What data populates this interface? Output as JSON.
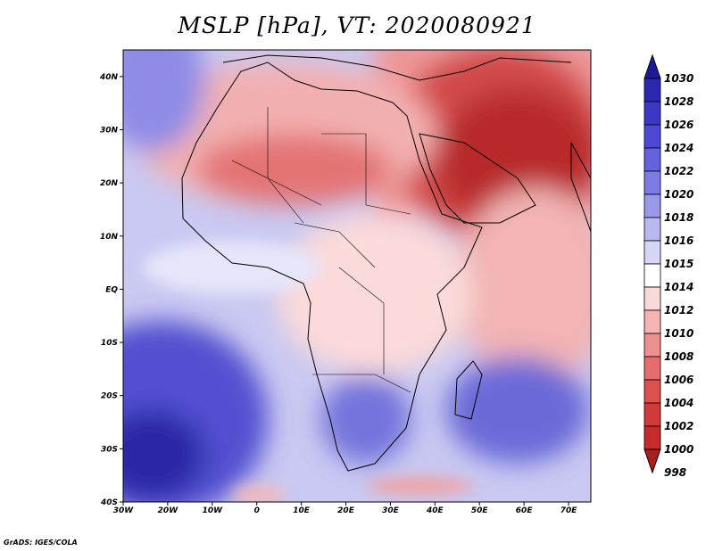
{
  "title": "MSLP [hPa], VT: 2020080921",
  "credit": "GrADS: IGES/COLA",
  "map": {
    "lon_range": [
      -30,
      75
    ],
    "lat_range": [
      -40,
      45
    ],
    "x_ticks": [
      "30W",
      "20W",
      "10W",
      "0",
      "10E",
      "20E",
      "30E",
      "40E",
      "50E",
      "60E",
      "70E"
    ],
    "y_ticks": [
      "40N",
      "30N",
      "20N",
      "10N",
      "EQ",
      "10S",
      "20S",
      "30S",
      "40S"
    ]
  },
  "colorbar": {
    "levels": [
      "1030",
      "1028",
      "1026",
      "1024",
      "1022",
      "1020",
      "1018",
      "1016",
      "1015",
      "1014",
      "1012",
      "1010",
      "1008",
      "1006",
      "1004",
      "1002",
      "1000",
      "998"
    ],
    "colors": [
      "#1c1a96",
      "#2a28b0",
      "#3b38c6",
      "#4c4ad4",
      "#6462dc",
      "#7d7be4",
      "#9a99ea",
      "#b9b8f1",
      "#d6d6f7",
      "#ffffff",
      "#fbd9d9",
      "#f6b3b3",
      "#ef9090",
      "#e56d6d",
      "#dc5050",
      "#d23a3a",
      "#c72a2a",
      "#ab1e1e"
    ]
  }
}
